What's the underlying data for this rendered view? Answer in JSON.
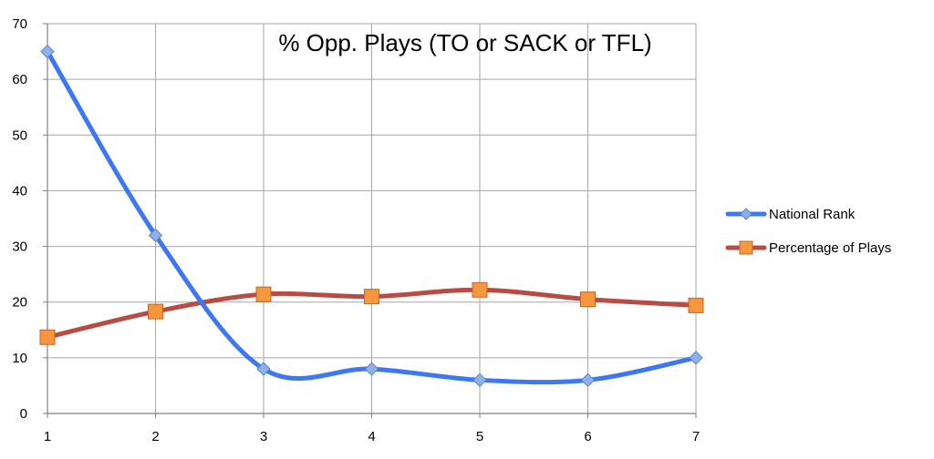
{
  "chart_data": {
    "type": "line",
    "title": "% Opp. Plays (TO or SACK or TFL)",
    "xlabel": "",
    "ylabel": "",
    "x": [
      1,
      2,
      3,
      4,
      5,
      6,
      7
    ],
    "xlim": [
      1,
      7
    ],
    "ylim": [
      0,
      70
    ],
    "y_ticks": [
      0,
      10,
      20,
      30,
      40,
      50,
      60,
      70
    ],
    "grid": true,
    "smooth": true,
    "legend_position": "right",
    "series": [
      {
        "name": "National Rank",
        "values": [
          65,
          32,
          8,
          8,
          6,
          6,
          10
        ],
        "color": "#3d78f2",
        "marker": "diamond",
        "marker_color": "#8fb0e8"
      },
      {
        "name": "Percentage of Plays",
        "values": [
          13.7,
          18.3,
          21.4,
          21,
          22.2,
          20.5,
          19.4
        ],
        "color": "#b84b42",
        "marker": "square",
        "marker_color": "#f5983d"
      }
    ]
  }
}
